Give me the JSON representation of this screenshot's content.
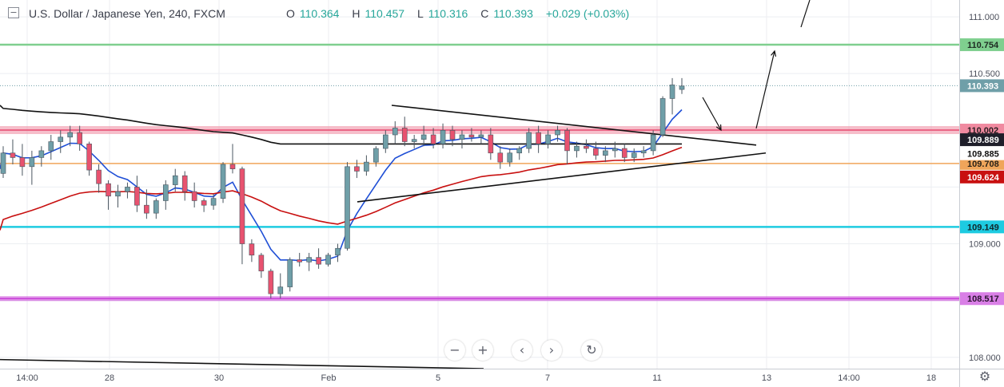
{
  "header": {
    "collapse_icon": "minus-box-icon",
    "title": "U.S. Dollar / Japanese Yen, 240, FXCM",
    "open_label": "O",
    "open": "110.364",
    "high_label": "H",
    "high": "110.457",
    "low_label": "L",
    "low": "110.316",
    "close_label": "C",
    "close": "110.393",
    "change": "+0.029 (+0.03%)"
  },
  "controls": {
    "zoom_out": "−",
    "zoom_in": "+",
    "scroll_left": "‹",
    "scroll_right": "›",
    "reset": "↻",
    "settings": "⚙"
  },
  "colors": {
    "up": "#6f9fa8",
    "down": "#e8526f",
    "ema_fast": "#1f4fd6",
    "ema_mid": "#c81010",
    "ema_slow": "#111111",
    "green": "#7fcf8f",
    "pink": "#f08aa0",
    "orange": "#f0a55a",
    "cyan": "#1ecbe1",
    "magenta": "#c83fd8"
  },
  "chart_data": {
    "type": "candlestick",
    "title": "U.S. Dollar / Japanese Yen, 240, FXCM",
    "ylim": [
      107.9,
      111.12
    ],
    "yticks": [
      "111.000",
      "110.500",
      "109.000",
      "108.000"
    ],
    "xlabels": [
      "14:00",
      "28",
      "30",
      "Feb",
      "5",
      "7",
      "11",
      "13",
      "14:00",
      "18"
    ],
    "levels": [
      {
        "name": "green",
        "value": 110.754,
        "label": "110.754"
      },
      {
        "name": "pink",
        "value": 110.002,
        "label": "110.002"
      },
      {
        "name": "orange",
        "value": 109.708,
        "label": "109.708"
      },
      {
        "name": "cyan",
        "value": 109.149,
        "label": "109.149"
      },
      {
        "name": "magenta",
        "value": 108.517,
        "label": "108.517"
      }
    ],
    "price_labels": [
      {
        "value": 110.393,
        "label": "110.393",
        "kind": "last"
      },
      {
        "value": 109.889,
        "label": "109.889",
        "kind": "ema_fast"
      },
      {
        "value": 109.885,
        "label": "109.885",
        "kind": "ema_slow"
      },
      {
        "value": 109.624,
        "label": "109.624",
        "kind": "ema_mid"
      }
    ],
    "candles": [
      [
        109.62,
        109.86,
        109.58,
        109.8
      ],
      [
        109.8,
        109.92,
        109.7,
        109.76
      ],
      [
        109.76,
        109.88,
        109.6,
        109.68
      ],
      [
        109.68,
        109.82,
        109.52,
        109.76
      ],
      [
        109.76,
        109.86,
        109.68,
        109.82
      ],
      [
        109.82,
        109.96,
        109.74,
        109.9
      ],
      [
        109.9,
        110.0,
        109.8,
        109.94
      ],
      [
        109.94,
        110.04,
        109.86,
        109.98
      ],
      [
        109.98,
        110.04,
        109.82,
        109.88
      ],
      [
        109.88,
        109.9,
        109.6,
        109.65
      ],
      [
        109.65,
        109.7,
        109.45,
        109.53
      ],
      [
        109.53,
        109.56,
        109.3,
        109.42
      ],
      [
        109.42,
        109.52,
        109.32,
        109.46
      ],
      [
        109.46,
        109.54,
        109.4,
        109.5
      ],
      [
        109.5,
        109.6,
        109.28,
        109.34
      ],
      [
        109.34,
        109.48,
        109.22,
        109.27
      ],
      [
        109.27,
        109.4,
        109.22,
        109.38
      ],
      [
        109.38,
        109.56,
        109.3,
        109.52
      ],
      [
        109.52,
        109.66,
        109.46,
        109.6
      ],
      [
        109.6,
        109.64,
        109.38,
        109.46
      ],
      [
        109.46,
        109.54,
        109.32,
        109.38
      ],
      [
        109.38,
        109.4,
        109.28,
        109.34
      ],
      [
        109.34,
        109.44,
        109.3,
        109.4
      ],
      [
        109.4,
        109.72,
        109.36,
        109.7
      ],
      [
        109.7,
        109.88,
        109.62,
        109.66
      ],
      [
        109.66,
        109.68,
        108.82,
        109.0
      ],
      [
        109.0,
        109.04,
        108.84,
        108.9
      ],
      [
        108.9,
        108.92,
        108.7,
        108.76
      ],
      [
        108.76,
        108.78,
        108.52,
        108.56
      ],
      [
        108.56,
        108.74,
        108.52,
        108.62
      ],
      [
        108.62,
        108.88,
        108.58,
        108.86
      ],
      [
        108.86,
        108.92,
        108.8,
        108.84
      ],
      [
        108.84,
        108.92,
        108.76,
        108.88
      ],
      [
        108.88,
        108.96,
        108.78,
        108.82
      ],
      [
        108.82,
        108.92,
        108.8,
        108.9
      ],
      [
        108.9,
        109.0,
        108.84,
        108.96
      ],
      [
        108.96,
        109.72,
        108.94,
        109.68
      ],
      [
        109.68,
        109.74,
        109.58,
        109.64
      ],
      [
        109.64,
        109.78,
        109.6,
        109.72
      ],
      [
        109.72,
        109.86,
        109.68,
        109.84
      ],
      [
        109.84,
        110.0,
        109.8,
        109.96
      ],
      [
        109.96,
        110.08,
        109.88,
        110.02
      ],
      [
        110.02,
        110.12,
        109.86,
        109.9
      ],
      [
        109.9,
        109.96,
        109.84,
        109.92
      ],
      [
        109.92,
        110.04,
        109.86,
        109.96
      ],
      [
        109.96,
        110.02,
        109.84,
        109.88
      ],
      [
        109.88,
        110.06,
        109.84,
        110.0
      ],
      [
        110.0,
        110.04,
        109.86,
        109.92
      ],
      [
        109.92,
        110.0,
        109.84,
        109.96
      ],
      [
        109.96,
        110.02,
        109.9,
        109.94
      ],
      [
        109.94,
        110.0,
        109.88,
        109.96
      ],
      [
        109.96,
        110.02,
        109.74,
        109.8
      ],
      [
        109.8,
        109.86,
        109.66,
        109.72
      ],
      [
        109.72,
        109.84,
        109.68,
        109.8
      ],
      [
        109.8,
        109.86,
        109.74,
        109.84
      ],
      [
        109.84,
        110.02,
        109.8,
        109.98
      ],
      [
        109.98,
        110.04,
        109.8,
        109.88
      ],
      [
        109.88,
        110.0,
        109.84,
        109.96
      ],
      [
        109.96,
        110.04,
        109.9,
        110.0
      ],
      [
        110.0,
        110.02,
        109.7,
        109.82
      ],
      [
        109.82,
        109.9,
        109.76,
        109.86
      ],
      [
        109.86,
        109.92,
        109.8,
        109.84
      ],
      [
        109.84,
        109.9,
        109.74,
        109.78
      ],
      [
        109.78,
        109.86,
        109.72,
        109.82
      ],
      [
        109.82,
        109.9,
        109.76,
        109.84
      ],
      [
        109.84,
        109.88,
        109.72,
        109.76
      ],
      [
        109.76,
        109.84,
        109.72,
        109.8
      ],
      [
        109.8,
        109.86,
        109.76,
        109.82
      ],
      [
        109.82,
        110.0,
        109.78,
        109.96
      ],
      [
        109.96,
        110.3,
        109.94,
        110.28
      ],
      [
        110.28,
        110.46,
        110.14,
        110.4
      ],
      [
        110.36,
        110.46,
        110.32,
        110.39
      ]
    ]
  }
}
